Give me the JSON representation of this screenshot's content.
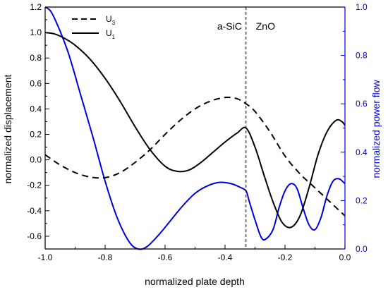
{
  "chart_data": {
    "type": "line",
    "xlabel": "normalized plate depth",
    "ylabel_left": "normalized displacement",
    "ylabel_right": "normalized power flow",
    "xlim": [
      -1.0,
      0.0
    ],
    "ylim_left": [
      -0.7,
      1.2
    ],
    "ylim_right": [
      0.0,
      1.0
    ],
    "x_ticks": [
      -1.0,
      -0.8,
      -0.6,
      -0.4,
      -0.2,
      0.0
    ],
    "x_tick_labels": [
      "-1.0",
      "-0.8",
      "-0.6",
      "-0.4",
      "-0.2",
      "0.0"
    ],
    "y_left_ticks": [
      -0.6,
      -0.4,
      -0.2,
      0.0,
      0.2,
      0.4,
      0.6,
      0.8,
      1.0,
      1.2
    ],
    "y_left_tick_labels": [
      "-0.6",
      "-0.4",
      "-0.2",
      "0.0",
      "0.2",
      "0.4",
      "0.6",
      "0.8",
      "1.0",
      "1.2"
    ],
    "y_right_ticks": [
      0.0,
      0.2,
      0.4,
      0.6,
      0.8,
      1.0
    ],
    "y_right_tick_labels": [
      "0.0",
      "0.2",
      "0.4",
      "0.6",
      "0.8",
      "1.0"
    ],
    "interface_x": -0.33,
    "annotations": [
      {
        "text": "a-SiC",
        "x": -0.385,
        "y": 1.05
      },
      {
        "text": "ZnO",
        "x": -0.265,
        "y": 1.05
      }
    ],
    "legend": {
      "placement": "top-left",
      "entries": [
        {
          "label_main": "U",
          "label_sub": "3",
          "style": "dashed",
          "color": "#000000"
        },
        {
          "label_main": "U",
          "label_sub": "1",
          "style": "solid",
          "color": "#000000"
        }
      ]
    },
    "series": [
      {
        "id": "u3",
        "axis": "left",
        "style": "dashed",
        "color": "#000000",
        "x": [
          -1.0,
          -0.95,
          -0.9,
          -0.85,
          -0.8,
          -0.75,
          -0.7,
          -0.65,
          -0.6,
          -0.55,
          -0.5,
          -0.45,
          -0.4,
          -0.36,
          -0.33,
          -0.3,
          -0.25,
          -0.2,
          -0.15,
          -0.1,
          -0.05,
          0.0
        ],
        "y": [
          0.04,
          -0.04,
          -0.1,
          -0.135,
          -0.14,
          -0.1,
          -0.02,
          0.08,
          0.2,
          0.31,
          0.4,
          0.46,
          0.49,
          0.48,
          0.44,
          0.38,
          0.22,
          0.03,
          -0.11,
          -0.22,
          -0.33,
          -0.44
        ]
      },
      {
        "id": "u1",
        "axis": "left",
        "style": "solid",
        "color": "#000000",
        "x": [
          -1.0,
          -0.97,
          -0.94,
          -0.9,
          -0.85,
          -0.8,
          -0.75,
          -0.7,
          -0.65,
          -0.6,
          -0.56,
          -0.52,
          -0.48,
          -0.44,
          -0.4,
          -0.36,
          -0.33,
          -0.3,
          -0.27,
          -0.24,
          -0.21,
          -0.18,
          -0.15,
          -0.12,
          -0.09,
          -0.06,
          -0.03,
          -0.01,
          0.0
        ],
        "y": [
          1.0,
          0.99,
          0.96,
          0.9,
          0.79,
          0.64,
          0.46,
          0.26,
          0.08,
          -0.05,
          -0.09,
          -0.08,
          -0.02,
          0.06,
          0.14,
          0.21,
          0.25,
          0.1,
          -0.12,
          -0.33,
          -0.49,
          -0.53,
          -0.44,
          -0.22,
          0.04,
          0.22,
          0.31,
          0.3,
          0.27
        ]
      },
      {
        "id": "power",
        "axis": "right",
        "style": "solid",
        "color": "#0000dd",
        "x": [
          -1.0,
          -0.98,
          -0.95,
          -0.92,
          -0.88,
          -0.84,
          -0.8,
          -0.76,
          -0.72,
          -0.69,
          -0.66,
          -0.62,
          -0.58,
          -0.54,
          -0.5,
          -0.46,
          -0.42,
          -0.38,
          -0.35,
          -0.33,
          -0.32,
          -0.3,
          -0.28,
          -0.265,
          -0.24,
          -0.22,
          -0.2,
          -0.18,
          -0.16,
          -0.14,
          -0.12,
          -0.1,
          -0.08,
          -0.06,
          -0.04,
          -0.02,
          0.0
        ],
        "y": [
          1.0,
          0.98,
          0.9,
          0.8,
          0.63,
          0.46,
          0.28,
          0.13,
          0.03,
          0.0,
          0.01,
          0.06,
          0.12,
          0.18,
          0.23,
          0.26,
          0.275,
          0.27,
          0.255,
          0.24,
          0.2,
          0.12,
          0.05,
          0.04,
          0.08,
          0.17,
          0.24,
          0.27,
          0.25,
          0.17,
          0.1,
          0.08,
          0.13,
          0.22,
          0.28,
          0.29,
          0.27
        ]
      }
    ]
  }
}
